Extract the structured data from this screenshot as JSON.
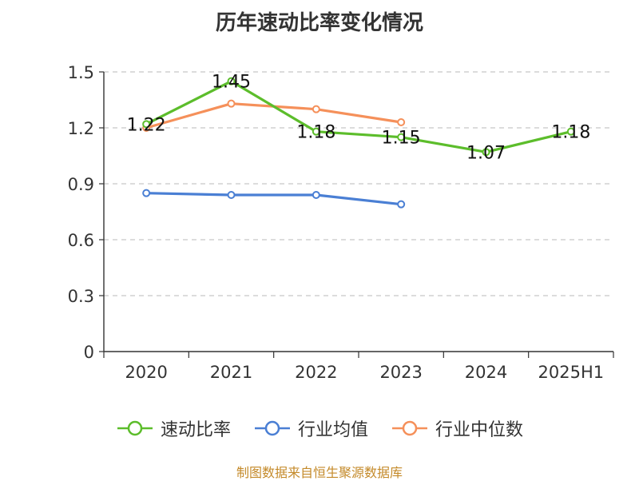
{
  "title": "历年速动比率变化情况",
  "source_note": "制图数据来自恒生聚源数据库",
  "chart_data": {
    "type": "line",
    "title": "历年速动比率变化情况",
    "categories": [
      "2020",
      "2021",
      "2022",
      "2023",
      "2024",
      "2025H1"
    ],
    "ylim": [
      0,
      1.5
    ],
    "yticks": [
      0,
      0.3,
      0.6,
      0.9,
      1.2,
      1.5
    ],
    "ytick_labels": [
      "0",
      "0.3",
      "0.6",
      "0.9",
      "1.2",
      "1.5"
    ],
    "grid": true,
    "legend_position": "bottom",
    "series": [
      {
        "name": "速动比率",
        "color": "#5cbd2b",
        "show_labels": true,
        "values": [
          1.22,
          1.45,
          1.18,
          1.15,
          1.07,
          1.18
        ],
        "labels": [
          "1.22",
          "1.45",
          "1.18",
          "1.15",
          "1.07",
          "1.18"
        ]
      },
      {
        "name": "行业均值",
        "color": "#4a7fd4",
        "show_labels": false,
        "values": [
          0.85,
          0.84,
          0.84,
          0.79,
          null,
          null
        ]
      },
      {
        "name": "行业中位数",
        "color": "#f5905a",
        "show_labels": false,
        "values": [
          1.2,
          1.33,
          1.3,
          1.23,
          null,
          null
        ]
      }
    ]
  }
}
